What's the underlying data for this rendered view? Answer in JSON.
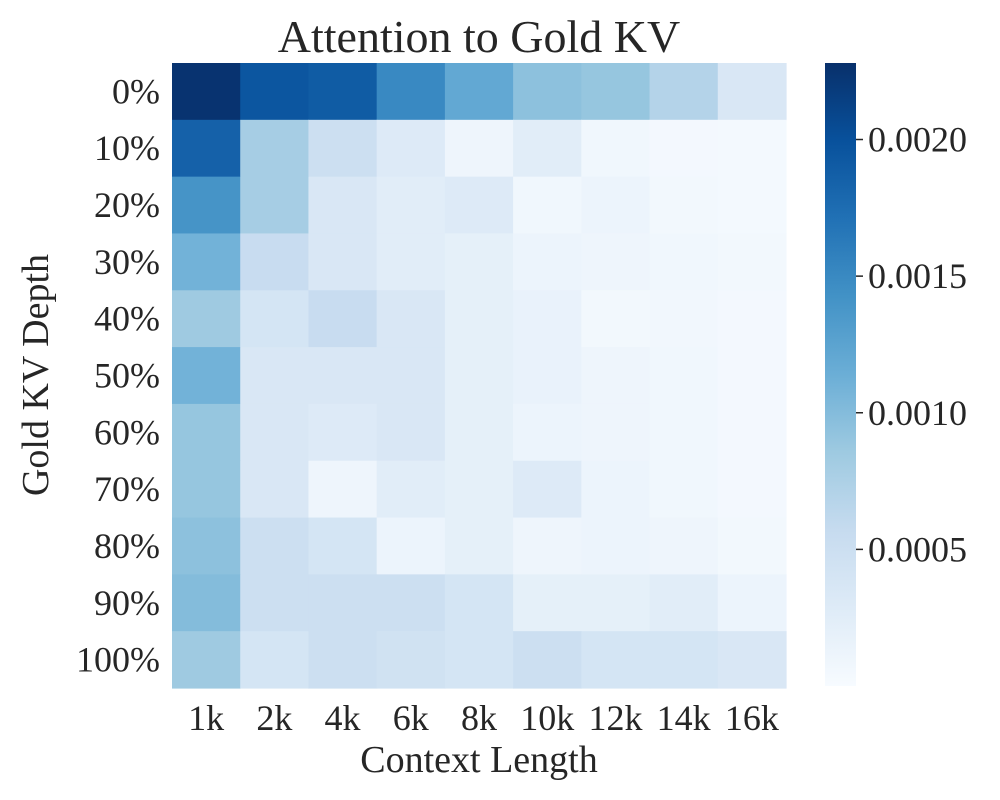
{
  "chart_data": {
    "type": "heatmap",
    "title": "Attention to Gold KV",
    "xlabel": "Context Length",
    "ylabel": "Gold KV Depth",
    "x_categories": [
      "1k",
      "2k",
      "4k",
      "6k",
      "8k",
      "10k",
      "12k",
      "14k",
      "16k"
    ],
    "y_categories": [
      "0%",
      "10%",
      "20%",
      "30%",
      "40%",
      "50%",
      "60%",
      "70%",
      "80%",
      "90%",
      "100%"
    ],
    "values": [
      [
        0.00225,
        0.00195,
        0.0019,
        0.0015,
        0.0012,
        0.00095,
        0.0009,
        0.0007,
        0.00035
      ],
      [
        0.00185,
        0.0008,
        0.0005,
        0.0003,
        0.0001,
        0.00025,
        8e-05,
        5e-05,
        4e-05
      ],
      [
        0.0014,
        0.0008,
        0.00035,
        0.00025,
        0.0003,
        8e-05,
        0.00012,
        6e-05,
        4e-05
      ],
      [
        0.0011,
        0.00055,
        0.00035,
        0.00025,
        0.0002,
        0.00012,
        0.0001,
        8e-05,
        6e-05
      ],
      [
        0.00085,
        0.0004,
        0.00055,
        0.00035,
        0.0002,
        0.00016,
        6e-05,
        7e-05,
        5e-05
      ],
      [
        0.0011,
        0.00035,
        0.00035,
        0.00035,
        0.0002,
        0.00016,
        0.0001,
        8e-05,
        5e-05
      ],
      [
        0.0009,
        0.00035,
        0.0003,
        0.00035,
        0.0002,
        0.00012,
        0.0001,
        8e-05,
        5e-05
      ],
      [
        0.0009,
        0.00035,
        0.0001,
        0.00025,
        0.0002,
        0.0003,
        0.00012,
        8e-05,
        5e-05
      ],
      [
        0.00095,
        0.0005,
        0.0004,
        0.00012,
        0.0002,
        0.0001,
        0.00012,
        0.0001,
        6e-05
      ],
      [
        0.001,
        0.0005,
        0.0005,
        0.0005,
        0.0004,
        0.0002,
        0.0002,
        0.00025,
        0.00012
      ],
      [
        0.00085,
        0.0004,
        0.0005,
        0.00045,
        0.0004,
        0.0005,
        0.0004,
        0.0004,
        0.00035
      ]
    ],
    "vmin": 0.0,
    "vmax": 0.00228,
    "colormap": "Blues",
    "colorbar_ticks": [
      {
        "value": 0.0005,
        "label": "0.0005"
      },
      {
        "value": 0.001,
        "label": "0.0010"
      },
      {
        "value": 0.0015,
        "label": "0.0015"
      },
      {
        "value": 0.002,
        "label": "0.0020"
      }
    ],
    "grid": false
  },
  "colormap_stops": [
    "#f7fbff",
    "#deebf7",
    "#c6dbef",
    "#9ecae1",
    "#6baed6",
    "#4292c6",
    "#2171b5",
    "#08519c",
    "#08306b"
  ]
}
